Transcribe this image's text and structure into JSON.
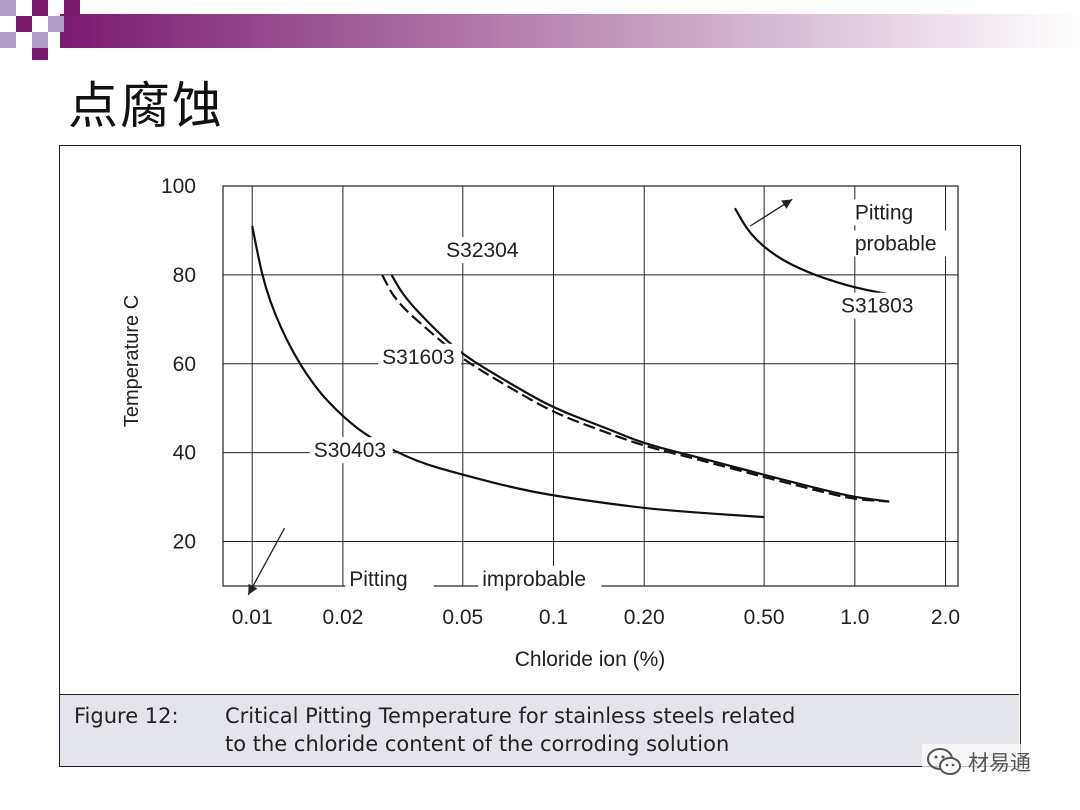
{
  "slide": {
    "title": "点腐蚀",
    "colors": {
      "bar_start": "#7a1a6e",
      "bar_end": "#ffffff",
      "caption_bg": "#e4e4ec"
    }
  },
  "caption": {
    "label": "Figure 12:",
    "line1": "Critical Pitting Temperature for stainless steels related",
    "line2": "to the chloride content of the corroding solution"
  },
  "watermark": {
    "text": "材易通",
    "icon": "wechat-icon"
  },
  "chart_data": {
    "type": "line",
    "title": "",
    "xlabel": "Chloride    ion    (%)",
    "ylabel": "Temperature    C",
    "xscale": "log",
    "xlim": [
      0.008,
      2.2
    ],
    "ylim": [
      10,
      100
    ],
    "x_ticks": [
      0.01,
      0.02,
      0.05,
      0.1,
      0.2,
      0.5,
      1.0,
      2.0
    ],
    "x_tick_labels": [
      "0.01",
      "0.02",
      "0.05",
      "0.1",
      "0.20",
      "0.50",
      "1.0",
      "2.0"
    ],
    "y_ticks": [
      20,
      40,
      60,
      80,
      100
    ],
    "y_tick_labels": [
      "20",
      "40",
      "60",
      "80",
      "100"
    ],
    "grid": true,
    "series": [
      {
        "name": "S30403",
        "style": "solid",
        "x": [
          0.01,
          0.011,
          0.013,
          0.016,
          0.02,
          0.025,
          0.035,
          0.05,
          0.08,
          0.12,
          0.2,
          0.3,
          0.5
        ],
        "y": [
          91,
          77,
          65,
          55,
          48,
          43,
          38,
          35,
          31.5,
          29.5,
          27.5,
          26.5,
          25.5
        ]
      },
      {
        "name": "S32304",
        "style": "solid",
        "x": [
          0.029,
          0.032,
          0.04,
          0.05,
          0.07,
          0.1,
          0.15,
          0.2,
          0.3,
          0.5,
          0.8,
          1.0,
          1.3
        ],
        "y": [
          80,
          75,
          68,
          62,
          56,
          50,
          45.5,
          42,
          39,
          35,
          31.5,
          30,
          29
        ]
      },
      {
        "name": "S31603",
        "style": "dashed",
        "x": [
          0.027,
          0.03,
          0.04,
          0.05,
          0.07,
          0.1,
          0.15,
          0.2,
          0.3,
          0.5,
          0.8,
          1.0,
          1.3
        ],
        "y": [
          80,
          74,
          66.5,
          61,
          55,
          49,
          44.5,
          41.5,
          38.5,
          34.5,
          31,
          29.5,
          29
        ]
      },
      {
        "name": "S31803",
        "style": "solid",
        "x": [
          0.4,
          0.45,
          0.55,
          0.7,
          0.9,
          1.1,
          1.35
        ],
        "y": [
          95,
          89,
          84,
          80.5,
          78,
          76.5,
          75.5
        ]
      }
    ],
    "series_labels": [
      {
        "text": "S30403",
        "x": 0.016,
        "y": 39
      },
      {
        "text": "S32304",
        "x": 0.044,
        "y": 84
      },
      {
        "text": "S31603",
        "x": 0.027,
        "y": 60
      },
      {
        "text": "S31803",
        "x": 0.9,
        "y": 71.5
      }
    ],
    "annotations": [
      {
        "text": "Pitting",
        "x": 1.0,
        "y": 92.5
      },
      {
        "text": "probable",
        "x": 1.0,
        "y": 85.5
      },
      {
        "text": "Pitting",
        "x": 0.021,
        "y": 10
      },
      {
        "text": "improbable",
        "x": 0.058,
        "y": 10
      }
    ],
    "arrows": [
      {
        "name": "pitting-probable-arrow",
        "from": [
          0.45,
          91
        ],
        "to": [
          0.62,
          97
        ]
      },
      {
        "name": "pitting-improbable-arrow",
        "from": [
          0.0128,
          23
        ],
        "to": [
          0.0097,
          8
        ]
      }
    ]
  }
}
